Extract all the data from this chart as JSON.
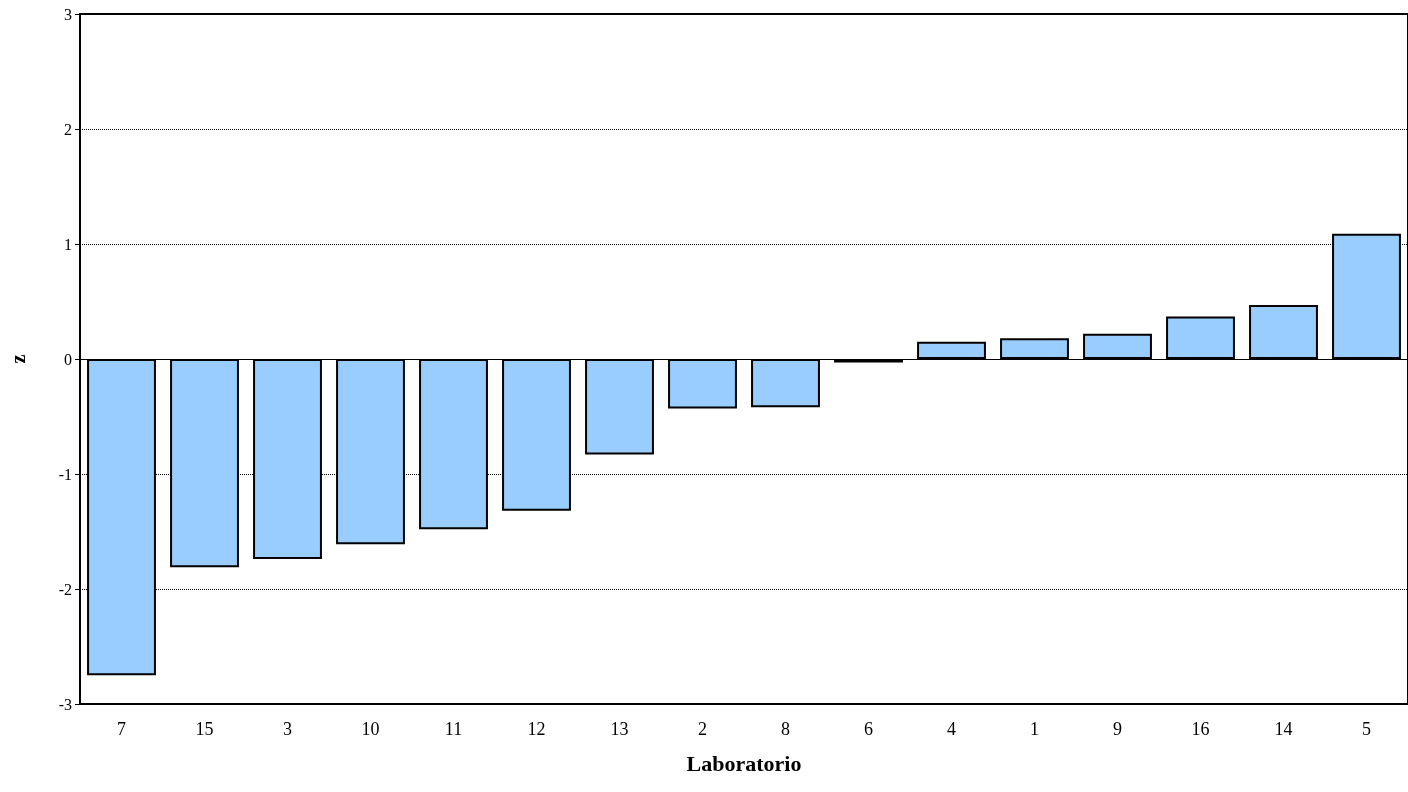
{
  "chart_data": {
    "type": "bar",
    "xlabel": "Laboratorio",
    "ylabel": "z",
    "categories": [
      "7",
      "15",
      "3",
      "10",
      "11",
      "12",
      "13",
      "2",
      "8",
      "6",
      "4",
      "1",
      "9",
      "16",
      "14",
      "5"
    ],
    "values": [
      -2.75,
      -1.81,
      -1.74,
      -1.61,
      -1.48,
      -1.32,
      -0.83,
      -0.43,
      -0.42,
      -0.03,
      0.15,
      0.18,
      0.22,
      0.37,
      0.47,
      1.09
    ],
    "color": "#99ccff",
    "ylim": [
      -3,
      3
    ],
    "yticks": [
      -3,
      -2,
      -1,
      0,
      1,
      2,
      3
    ],
    "grid": "y"
  }
}
